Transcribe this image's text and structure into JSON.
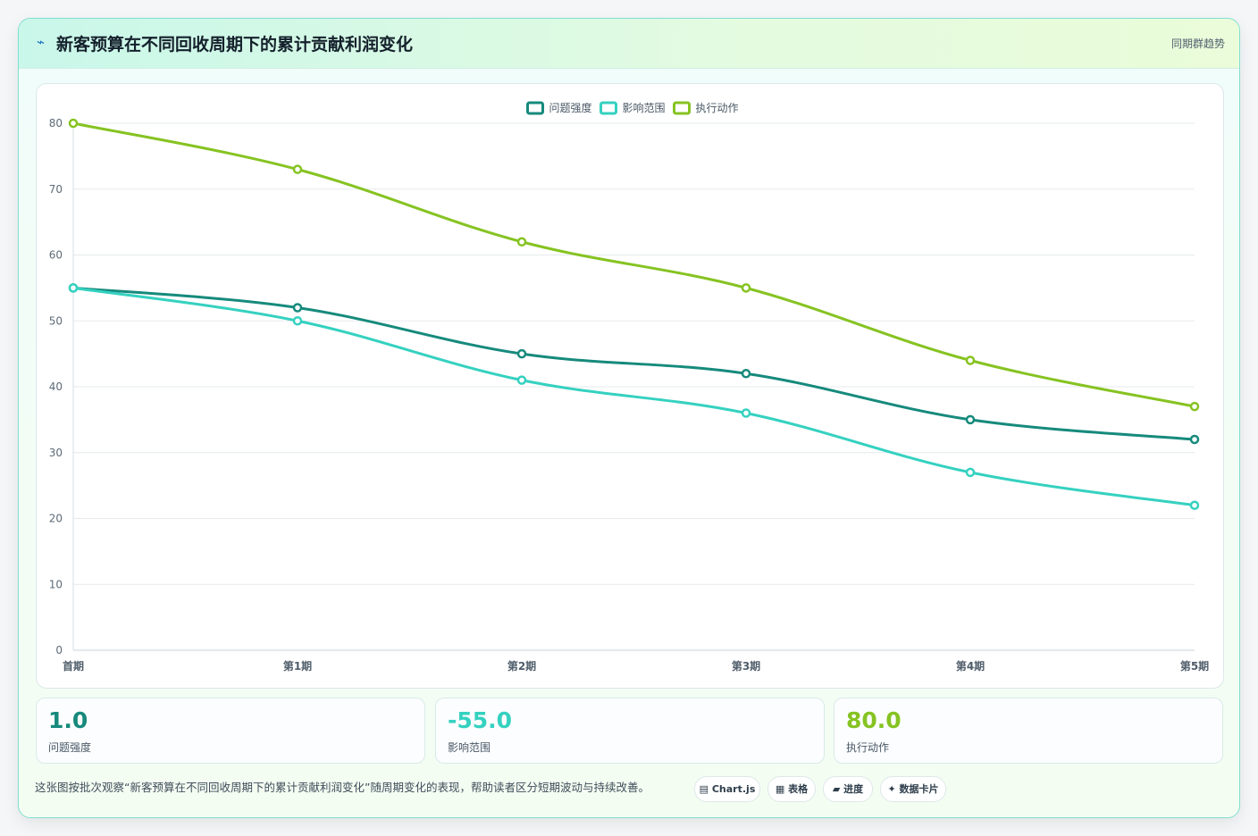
{
  "header": {
    "icon": "⌁",
    "title": "新客预算在不同回收周期下的累计贡献利润变化",
    "badge": "同期群趋势"
  },
  "chart_data": {
    "type": "line",
    "categories": [
      "首期",
      "第1期",
      "第2期",
      "第3期",
      "第4期",
      "第5期"
    ],
    "series": [
      {
        "name": "问题强度",
        "color": "#168a7c",
        "values": [
          55,
          52,
          45,
          42,
          35,
          32
        ]
      },
      {
        "name": "影响范围",
        "color": "#35d1c0",
        "values": [
          55,
          50,
          41,
          36,
          27,
          22
        ]
      },
      {
        "name": "执行动作",
        "color": "#86c322",
        "values": [
          80,
          73,
          62,
          55,
          44,
          37
        ]
      }
    ],
    "ylim": [
      0,
      80
    ],
    "yticks": [
      0,
      10,
      20,
      30,
      40,
      50,
      60,
      70,
      80
    ],
    "grid": true,
    "legend": "top-center"
  },
  "stats": [
    {
      "value": "1.0",
      "label": "问题强度",
      "color": "#168a7c"
    },
    {
      "value": "-55.0",
      "label": "影响范围",
      "color": "#35d1c0"
    },
    {
      "value": "80.0",
      "label": "执行动作",
      "color": "#86c322"
    }
  ],
  "footer": {
    "description": "这张图按批次观察“新客预算在不同回收周期下的累计贡献利润变化”随周期变化的表现，帮助读者区分短期波动与持续改善。",
    "chips": [
      {
        "icon": "chart-icon",
        "glyph": "▤",
        "label": "Chart.js"
      },
      {
        "icon": "table-icon",
        "glyph": "▦",
        "label": "表格"
      },
      {
        "icon": "progress-icon",
        "glyph": "▰",
        "label": "进度"
      },
      {
        "icon": "card-icon",
        "glyph": "✦",
        "label": "数据卡片"
      }
    ]
  }
}
